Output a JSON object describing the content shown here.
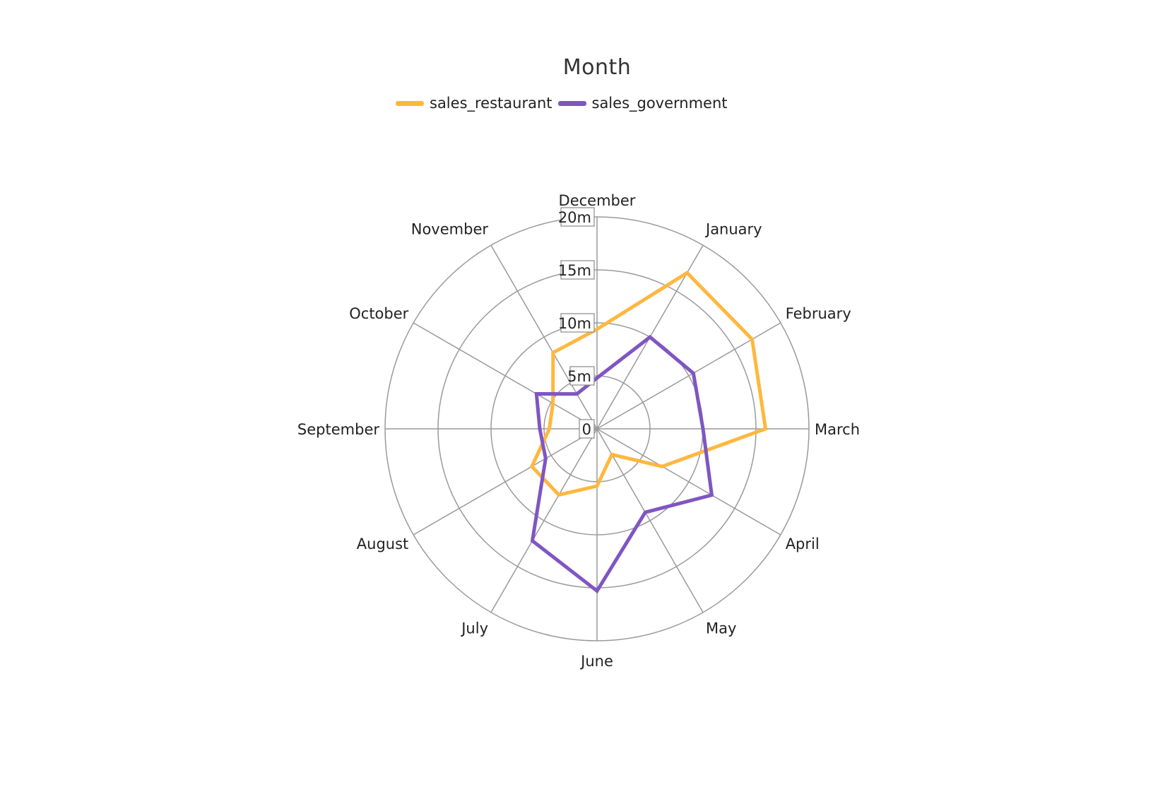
{
  "chart_data": {
    "type": "radar",
    "title": "Month",
    "categories": [
      "December",
      "January",
      "February",
      "March",
      "April",
      "May",
      "June",
      "July",
      "August",
      "September",
      "October",
      "November"
    ],
    "radial_ticks": [
      "0",
      "5m",
      "10m",
      "15m",
      "20m"
    ],
    "rlim": [
      0,
      20000000
    ],
    "grid": true,
    "legend_position": "top-center",
    "series": [
      {
        "name": "sales_restaurant",
        "color": "#FFB73F",
        "values": [
          9400000,
          17000000,
          16900000,
          15900000,
          7100000,
          2800000,
          5400000,
          7200000,
          7100000,
          4500000,
          4800000,
          8300000
        ]
      },
      {
        "name": "sales_government",
        "color": "#7F56C2",
        "values": [
          4800000,
          10000000,
          10500000,
          10000000,
          12500000,
          9100000,
          15300000,
          12200000,
          5600000,
          5400000,
          6600000,
          3800000
        ]
      }
    ]
  }
}
